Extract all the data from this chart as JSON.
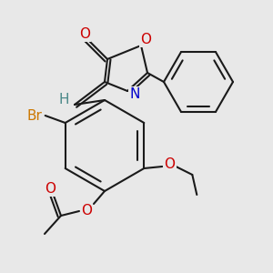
{
  "background_color": "#e8e8e8",
  "bond_color": "#1a1a1a",
  "bond_width": 1.5,
  "figsize": [
    3.0,
    3.0
  ],
  "dpi": 100,
  "colors": {
    "O": "#cc0000",
    "N": "#0000cc",
    "Br": "#cc7700",
    "H": "#4a8888",
    "C": "#1a1a1a"
  }
}
